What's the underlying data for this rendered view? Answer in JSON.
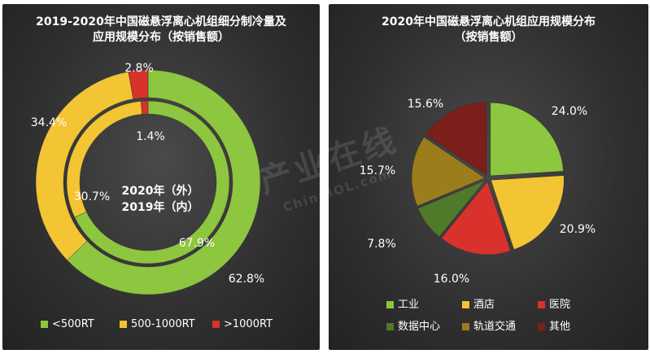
{
  "chart_data": [
    {
      "type": "donut",
      "title": "2019-2020年中国磁悬浮离心机组细分制冷量及应用规模分布（按销售额）",
      "title_lines": [
        "2019-2020年中国磁悬浮离心机组细分制冷量及",
        "应用规模分布（按销售额）"
      ],
      "center_label_lines": [
        "2020年（外）",
        "2019年（内）"
      ],
      "categories": [
        "<500RT",
        "500-1000RT",
        ">1000RT"
      ],
      "colors": [
        "#8dc63f",
        "#f3c433",
        "#d9312b"
      ],
      "series": [
        {
          "name": "2020年（外）",
          "values": [
            62.8,
            34.4,
            2.8
          ],
          "labels": [
            "62.8%",
            "34.4%",
            "2.8%"
          ]
        },
        {
          "name": "2019年（内）",
          "values": [
            67.9,
            30.7,
            1.4
          ],
          "labels": [
            "67.9%",
            "30.7%",
            "1.4%"
          ]
        }
      ],
      "legend_position": "bottom"
    },
    {
      "type": "pie",
      "title": "2020年中国磁悬浮离心机组应用规模分布（按销售额）",
      "title_lines": [
        "2020年中国磁悬浮离心机组应用规模分布",
        "（按销售额）"
      ],
      "categories": [
        "工业",
        "酒店",
        "医院",
        "数据中心",
        "轨道交通",
        "其他"
      ],
      "values": [
        24.0,
        20.9,
        16.0,
        7.8,
        15.7,
        15.6
      ],
      "labels": [
        "24.0%",
        "20.9%",
        "16.0%",
        "7.8%",
        "15.7%",
        "15.6%"
      ],
      "colors": [
        "#8dc63f",
        "#f3c433",
        "#d9312b",
        "#4f7a2a",
        "#9c7d1c",
        "#7a1f1a"
      ],
      "legend_position": "bottom"
    }
  ],
  "watermark": {
    "line1": "产业在线",
    "line2": "ChinaIOL.com"
  }
}
